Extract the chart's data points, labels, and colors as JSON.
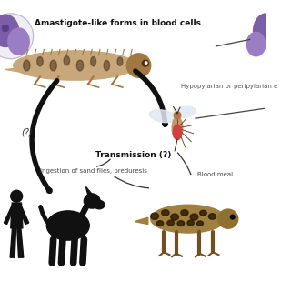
{
  "title": "Amastigote-like forms in blood cells",
  "bg_color": "#ffffff",
  "text_transmission": "Transmission (?)",
  "text_question": "(?)",
  "text_hypopylarian": "Hypopylarian or peripylarian e",
  "text_ingestion": "Ingestion of sand flies, preduresis",
  "text_blood_meal": "Blood meal",
  "title_fontsize": 6.5,
  "label_fontsize": 5.0,
  "transmission_fontsize": 6.5,
  "question_fontsize": 7.0,
  "fig_width": 3.2,
  "fig_height": 3.2,
  "dpi": 100,
  "cell_color1": "#7b5ea7",
  "cell_color2": "#9b7dc4",
  "cell_color3": "#5a3d8a",
  "dark_color": "#111111",
  "arrow_color": "#222222",
  "text_color": "#333333",
  "lizard_body": "#c8a87a",
  "lizard_dark": "#4a3018",
  "lizard_mid": "#a07840",
  "dog_color": "#111111",
  "gecko2_body": "#a08040",
  "gecko2_spot": "#2a1800",
  "fly_body": "#c8956a",
  "fly_red": "#d04040",
  "fly_wing": "#e0e8f0"
}
